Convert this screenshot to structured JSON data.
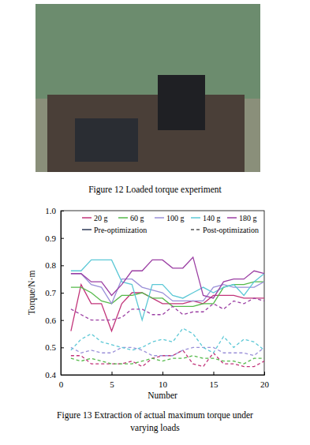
{
  "photo": {
    "caption": "Figure 12    Loaded torque experiment"
  },
  "chart_data": {
    "type": "line",
    "caption": [
      "Figure 13    Extraction of actual maximum torque under",
      "varying loads"
    ],
    "x_label": "Number",
    "y_label": "Torque/N·m",
    "x": [
      1,
      2,
      3,
      4,
      5,
      6,
      7,
      8,
      9,
      10,
      11,
      12,
      13,
      14,
      15,
      16,
      17,
      18,
      19,
      20
    ],
    "xlim": [
      0,
      20
    ],
    "xticks": [
      0,
      5,
      10,
      15,
      20
    ],
    "ylim": [
      0.4,
      1.0
    ],
    "yticks": [
      0.4,
      0.5,
      0.6,
      0.7,
      0.8,
      0.9,
      {
        "value": 1.0,
        "label": "1.0"
      }
    ],
    "legend": "top",
    "grid": false,
    "legend_styles": [
      {
        "name": "Pre-optimization",
        "line_style": "solid",
        "color": "#2e3a57"
      },
      {
        "name": "Post-optimization",
        "line_style": "dashed",
        "color": "#555555"
      }
    ],
    "series": [
      {
        "name": "20 g",
        "color": "#c2357a",
        "line_style": "solid",
        "values": [
          0.56,
          0.73,
          0.66,
          0.66,
          0.56,
          0.66,
          0.7,
          0.7,
          0.68,
          0.66,
          0.66,
          0.66,
          0.67,
          0.66,
          0.69,
          0.69,
          0.69,
          0.68,
          0.68,
          0.68
        ]
      },
      {
        "name": "60 g",
        "color": "#55b94a",
        "line_style": "solid",
        "values": [
          0.72,
          0.72,
          0.7,
          0.67,
          0.66,
          0.69,
          0.69,
          0.7,
          0.68,
          0.68,
          0.65,
          0.65,
          0.65,
          0.66,
          0.66,
          0.72,
          0.73,
          0.73,
          0.74,
          0.74
        ]
      },
      {
        "name": "100 g",
        "color": "#9a90d8",
        "line_style": "solid",
        "values": [
          0.77,
          0.77,
          0.73,
          0.72,
          0.66,
          0.75,
          0.75,
          0.72,
          0.71,
          0.7,
          0.67,
          0.67,
          0.67,
          0.67,
          0.72,
          0.73,
          0.72,
          0.72,
          0.72,
          0.74
        ]
      },
      {
        "name": "140 g",
        "color": "#5cc8d6",
        "line_style": "solid",
        "values": [
          0.78,
          0.78,
          0.82,
          0.82,
          0.82,
          0.74,
          0.73,
          0.6,
          0.73,
          0.73,
          0.69,
          0.68,
          0.7,
          0.72,
          0.7,
          0.72,
          0.73,
          0.69,
          0.74,
          0.77
        ]
      },
      {
        "name": "180 g",
        "color": "#9b3fa3",
        "line_style": "solid",
        "values": [
          0.77,
          0.77,
          0.74,
          0.74,
          0.69,
          0.73,
          0.78,
          0.78,
          0.82,
          0.82,
          0.79,
          0.79,
          0.83,
          0.69,
          0.68,
          0.74,
          0.75,
          0.75,
          0.78,
          0.77
        ]
      },
      {
        "name": "20 g",
        "color": "#c2357a",
        "line_style": "dashed",
        "values": [
          0.47,
          0.47,
          0.44,
          0.44,
          0.44,
          0.44,
          0.45,
          0.43,
          0.46,
          0.47,
          0.47,
          0.49,
          0.44,
          0.43,
          0.48,
          0.44,
          0.44,
          0.43,
          0.43,
          0.45
        ]
      },
      {
        "name": "60 g",
        "color": "#55b94a",
        "line_style": "dashed",
        "values": [
          0.46,
          0.45,
          0.46,
          0.45,
          0.44,
          0.44,
          0.44,
          0.45,
          0.46,
          0.45,
          0.46,
          0.46,
          0.47,
          0.46,
          0.46,
          0.45,
          0.45,
          0.44,
          0.46,
          0.46
        ]
      },
      {
        "name": "100 g",
        "color": "#9a90d8",
        "line_style": "dashed",
        "values": [
          0.5,
          0.48,
          0.49,
          0.48,
          0.48,
          0.5,
          0.5,
          0.49,
          0.47,
          0.47,
          0.47,
          0.49,
          0.5,
          0.5,
          0.5,
          0.48,
          0.48,
          0.48,
          0.47,
          0.5
        ]
      },
      {
        "name": "140 g",
        "color": "#5cc8d6",
        "line_style": "dashed",
        "values": [
          0.49,
          0.53,
          0.55,
          0.52,
          0.51,
          0.5,
          0.49,
          0.5,
          0.52,
          0.53,
          0.52,
          0.57,
          0.55,
          0.5,
          0.48,
          0.54,
          0.5,
          0.53,
          0.52,
          0.49
        ]
      },
      {
        "name": "180 g",
        "color": "#9b3fa3",
        "line_style": "dashed",
        "values": [
          0.64,
          0.62,
          0.6,
          0.6,
          0.6,
          0.61,
          0.64,
          0.64,
          0.62,
          0.62,
          0.65,
          0.62,
          0.63,
          0.63,
          0.66,
          0.64,
          0.67,
          0.66,
          0.68,
          0.67
        ]
      }
    ]
  }
}
